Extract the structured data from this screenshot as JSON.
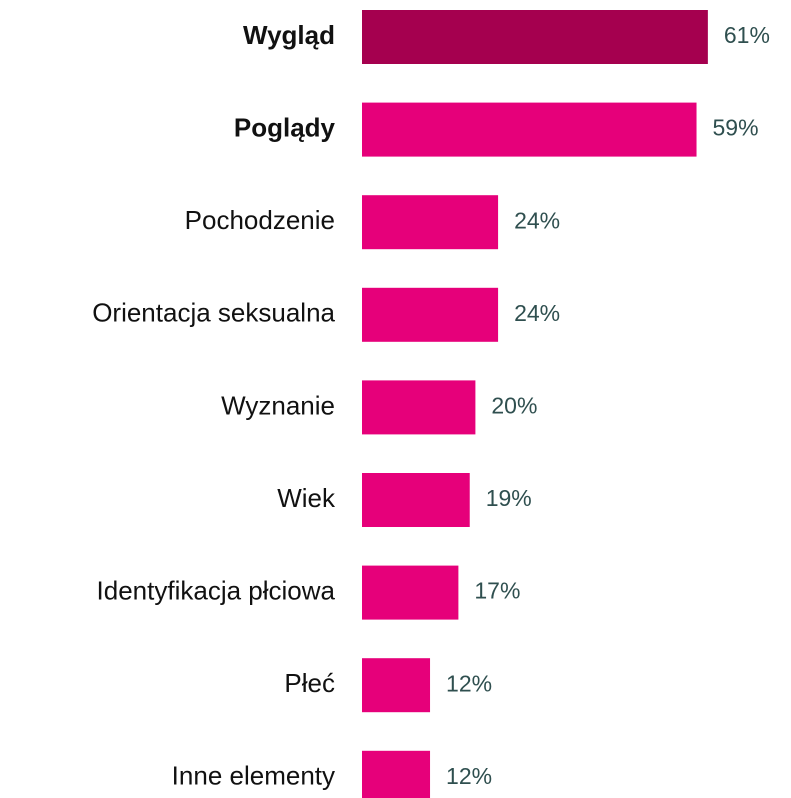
{
  "chart_data": {
    "type": "bar",
    "orientation": "horizontal",
    "categories": [
      "Wygląd",
      "Poglądy",
      "Pochodzenie",
      "Orientacja seksualna",
      "Wyznanie",
      "Wiek",
      "Identyfikacja płciowa",
      "Płeć",
      "Inne elementy"
    ],
    "values": [
      61,
      59,
      24,
      24,
      20,
      19,
      17,
      12,
      12
    ],
    "value_labels": [
      "61%",
      "59%",
      "24%",
      "24%",
      "20%",
      "19%",
      "17%",
      "12%",
      "12%"
    ],
    "colors": [
      "#a5004f",
      "#e6007a",
      "#e6007a",
      "#e6007a",
      "#e6007a",
      "#e6007a",
      "#e6007a",
      "#e6007a",
      "#e6007a"
    ],
    "bold_categories": [
      true,
      true,
      false,
      false,
      false,
      false,
      false,
      false,
      false
    ]
  }
}
